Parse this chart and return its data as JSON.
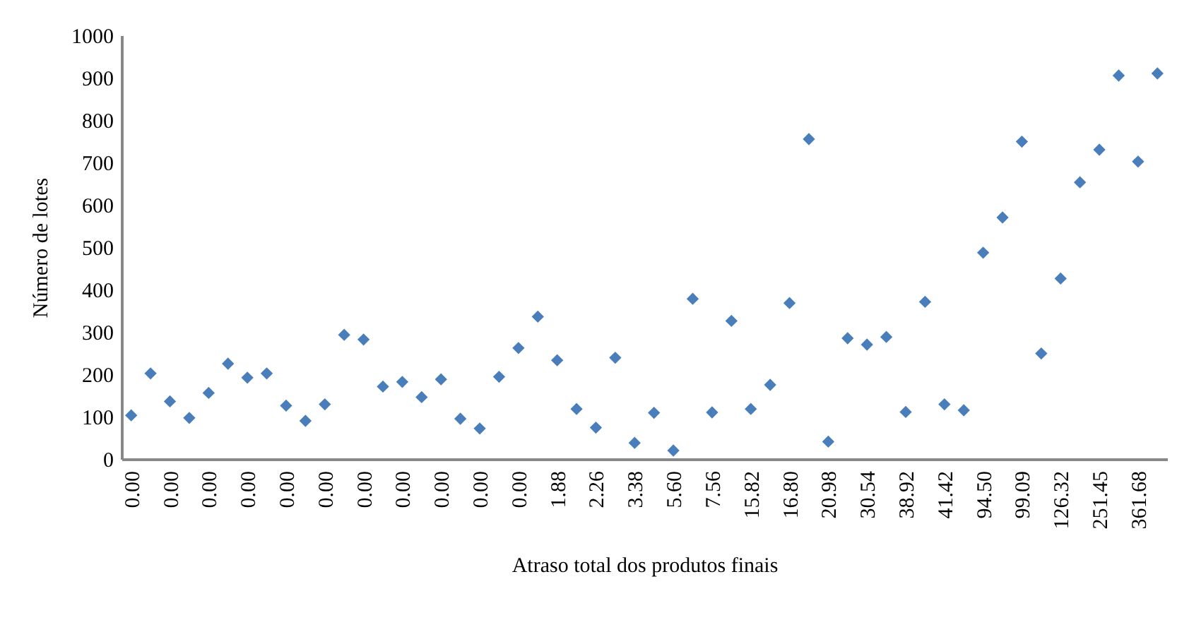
{
  "chart_data": {
    "type": "scatter",
    "xlabel": "Atraso total dos produtos finais",
    "ylabel": "Número de lotes",
    "categories": [
      "0.00",
      null,
      "0.00",
      null,
      "0.00",
      null,
      "0.00",
      null,
      "0.00",
      null,
      "0.00",
      null,
      "0.00",
      null,
      "0.00",
      null,
      "0.00",
      null,
      "0.00",
      null,
      "0.00",
      null,
      "1.88",
      null,
      "2.26",
      null,
      "3.38",
      null,
      "5.60",
      null,
      "7.56",
      null,
      "15.82",
      null,
      "16.80",
      null,
      "20.98",
      null,
      "30.54",
      null,
      "38.92",
      null,
      "41.42",
      null,
      "94.50",
      null,
      "99.09",
      null,
      "126.32",
      null,
      "251.45",
      null,
      "361.68",
      null
    ],
    "series": [
      {
        "color": "#4a7ebb",
        "values": [
          103,
          202,
          136,
          97,
          156,
          225,
          192,
          202,
          126,
          90,
          129,
          293,
          282,
          171,
          182,
          146,
          188,
          95,
          72,
          194,
          262,
          336,
          233,
          118,
          74,
          239,
          38,
          109,
          20,
          378,
          110,
          326,
          118,
          175,
          368,
          755,
          41,
          285,
          270,
          288,
          111,
          371,
          129,
          115,
          487,
          570,
          749,
          249,
          426,
          653,
          730,
          905,
          702,
          910
        ]
      }
    ],
    "ylim": [
      0,
      1000
    ],
    "yticks": [
      0,
      100,
      200,
      300,
      400,
      500,
      600,
      700,
      800,
      900,
      1000
    ],
    "grid": false,
    "legend": false,
    "marker": "diamond"
  }
}
